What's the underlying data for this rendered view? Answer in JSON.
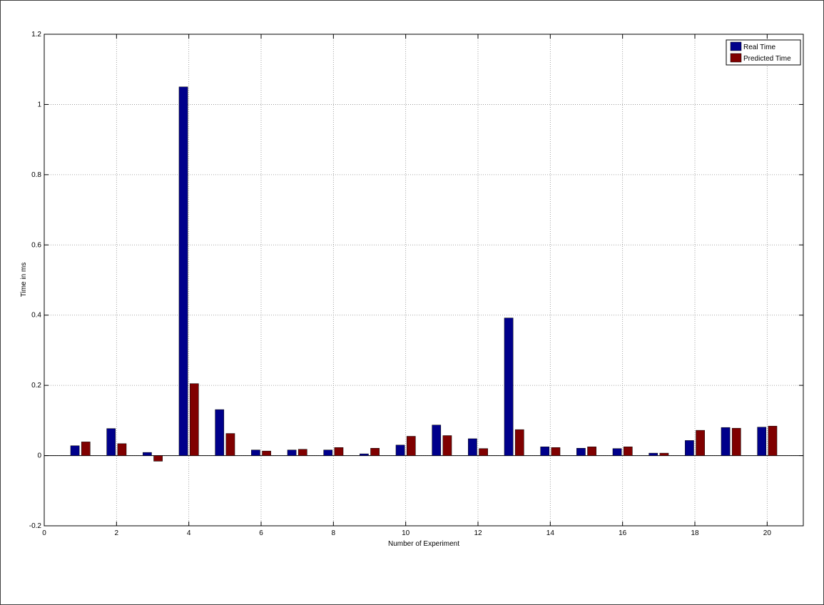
{
  "chart_data": {
    "type": "bar",
    "title": "",
    "xlabel": "Number of Experiment",
    "ylabel": "Time in ms",
    "xlim": [
      0,
      21
    ],
    "ylim": [
      -0.2,
      1.2
    ],
    "x_ticks": [
      "0",
      "2",
      "4",
      "6",
      "8",
      "10",
      "12",
      "14",
      "16",
      "18",
      "20"
    ],
    "x_tick_values": [
      0,
      2,
      4,
      6,
      8,
      10,
      12,
      14,
      16,
      18,
      20
    ],
    "y_ticks": [
      "-0.2",
      "0",
      "0.2",
      "0.4",
      "0.6",
      "0.8",
      "1",
      "1.2"
    ],
    "y_tick_values": [
      -0.2,
      0,
      0.2,
      0.4,
      0.6,
      0.8,
      1.0,
      1.2
    ],
    "grid": true,
    "legend_position": "top-right",
    "categories": [
      1,
      2,
      3,
      4,
      5,
      6,
      7,
      8,
      9,
      10,
      11,
      12,
      13,
      14,
      15,
      16,
      17,
      18,
      19,
      20
    ],
    "series": [
      {
        "name": "Real Time",
        "color": "#00008b",
        "values": [
          0.028,
          0.077,
          0.009,
          1.05,
          0.131,
          0.016,
          0.016,
          0.016,
          0.005,
          0.03,
          0.087,
          0.048,
          0.392,
          0.025,
          0.021,
          0.02,
          0.007,
          0.043,
          0.08,
          0.081
        ]
      },
      {
        "name": "Predicted Time",
        "color": "#800000",
        "values": [
          0.039,
          0.034,
          -0.016,
          0.205,
          0.063,
          0.013,
          0.018,
          0.023,
          0.021,
          0.055,
          0.057,
          0.02,
          0.074,
          0.023,
          0.025,
          0.025,
          0.007,
          0.072,
          0.078,
          0.084
        ]
      }
    ]
  }
}
